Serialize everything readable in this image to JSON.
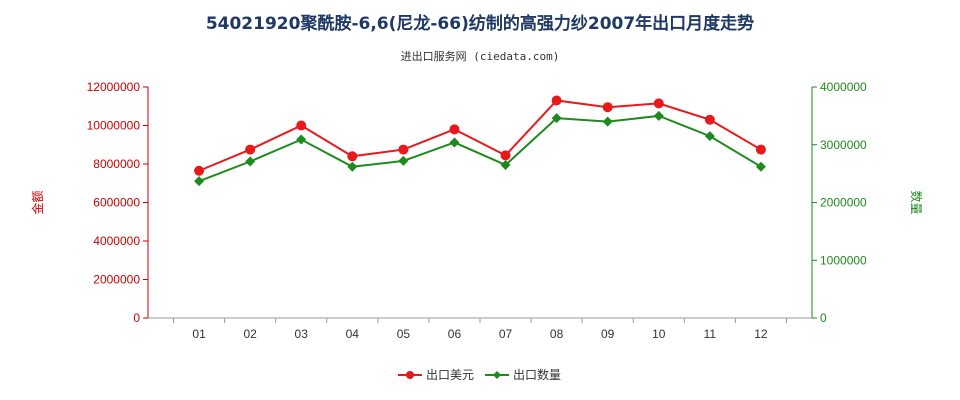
{
  "header": {
    "title": "54021920聚酰胺-6,6(尼龙-66)纺制的高强力纱2007年出口月度走势",
    "source": "进出口服务网 (ciedata.com)"
  },
  "colors": {
    "value_series": "#e8191c",
    "quantity_series": "#1e8a1e",
    "left_axis": "#cc0000",
    "right_axis": "#1e8a1e",
    "title": "#1f3864"
  },
  "chart_data": {
    "type": "line",
    "title": "54021920聚酰胺-6,6(尼龙-66)纺制的高强力纱2007年出口月度走势",
    "categories": [
      "01",
      "02",
      "03",
      "04",
      "05",
      "06",
      "07",
      "08",
      "09",
      "10",
      "11",
      "12"
    ],
    "ylabel_left": "金额",
    "ylabel_right": "数量",
    "ylim_left": [
      0,
      12000000
    ],
    "ylim_right": [
      0,
      4000000
    ],
    "yticks_left": [
      "0",
      "2000000",
      "4000000",
      "6000000",
      "8000000",
      "10000000",
      "12000000"
    ],
    "yticks_right": [
      "0",
      "1000000",
      "2000000",
      "3000000",
      "4000000"
    ],
    "grid": false,
    "legend_position": "bottom-center",
    "series": [
      {
        "name": "出口美元",
        "axis": "left",
        "values": [
          7650000,
          8750000,
          10000000,
          8400000,
          8750000,
          9800000,
          8450000,
          11300000,
          10950000,
          11150000,
          10300000,
          8750000
        ]
      },
      {
        "name": "出口数量",
        "axis": "right",
        "values": [
          2370000,
          2710000,
          3090000,
          2620000,
          2720000,
          3040000,
          2650000,
          3460000,
          3400000,
          3500000,
          3150000,
          2620000
        ]
      }
    ]
  }
}
